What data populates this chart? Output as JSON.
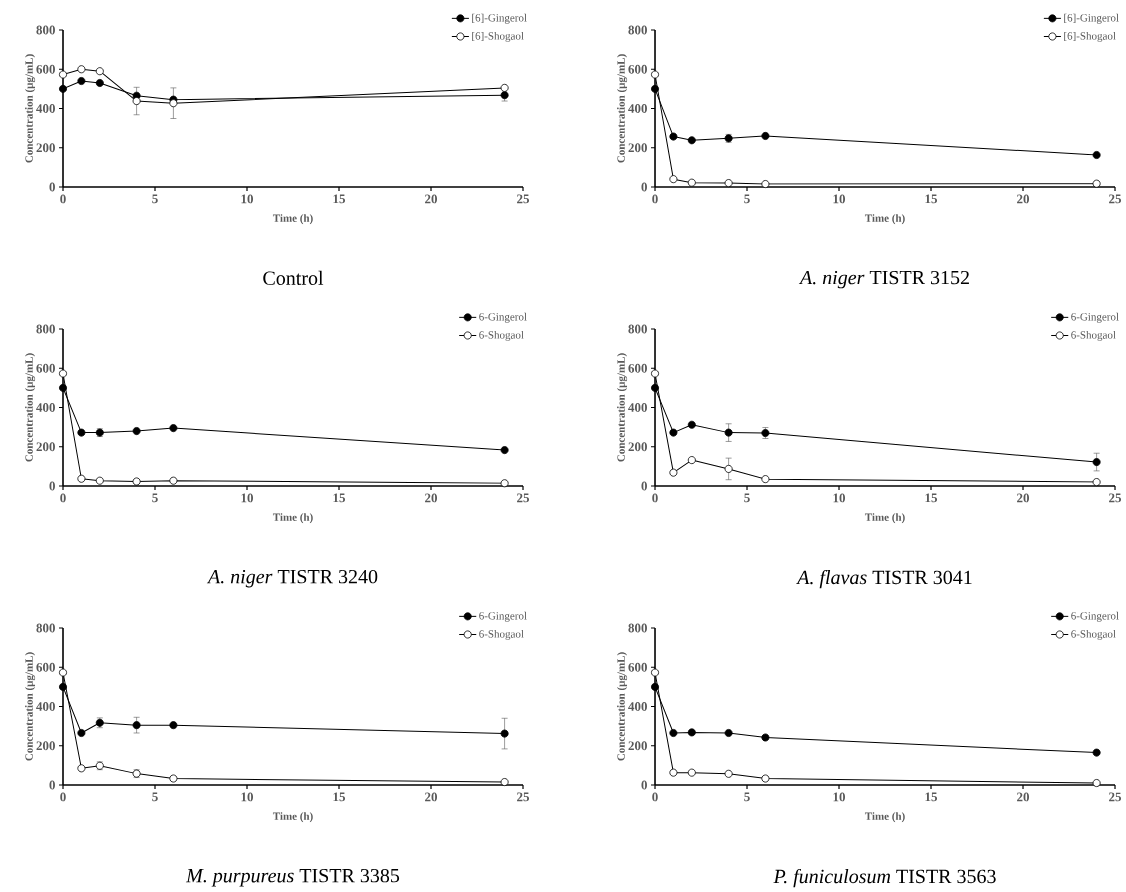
{
  "chart_data": [
    {
      "type": "line",
      "title": "Control",
      "xlabel": "Time (h)",
      "ylabel": "Concentration (µg/mL)",
      "x": [
        0,
        1,
        2,
        4,
        6,
        24
      ],
      "xlim": [
        0,
        25
      ],
      "xticks": [
        0,
        5,
        10,
        15,
        20,
        25
      ],
      "ylim": [
        0,
        800
      ],
      "yticks": [
        0,
        200,
        400,
        600,
        800
      ],
      "legend": "top right",
      "marker": "circle",
      "line_style": "solid",
      "series": [
        {
          "name": "[6]-Gingerol",
          "color": "#000000",
          "values": [
            500,
            540,
            530,
            465,
            445,
            468
          ],
          "errors": [
            null,
            null,
            null,
            null,
            null,
            30
          ]
        },
        {
          "name": "[6]-Shogaol",
          "color": "#000000",
          "values": [
            573,
            600,
            590,
            438,
            427,
            505
          ],
          "errors": [
            null,
            null,
            null,
            70,
            78,
            null
          ]
        }
      ]
    },
    {
      "type": "line",
      "title": "*A. niger* TISTR 3152",
      "xlabel": "Time (h)",
      "ylabel": "Concentration (µg/mL)",
      "x": [
        0,
        1,
        2,
        4,
        6,
        24
      ],
      "xlim": [
        0,
        25
      ],
      "xticks": [
        0,
        5,
        10,
        15,
        20,
        25
      ],
      "ylim": [
        0,
        800
      ],
      "yticks": [
        0,
        200,
        400,
        600,
        800
      ],
      "legend": "top right",
      "marker": "circle",
      "line_style": "solid",
      "series": [
        {
          "name": "[6]-Gingerol",
          "color": "#000000",
          "values": [
            500,
            257,
            238,
            248,
            260,
            163
          ],
          "errors": [
            null,
            null,
            null,
            20,
            null,
            null
          ]
        },
        {
          "name": "[6]-Shogaol",
          "color": "#000000",
          "values": [
            573,
            40,
            22,
            20,
            15,
            17
          ]
        }
      ]
    },
    {
      "type": "line",
      "title": "*A. niger* TISTR 3240",
      "xlabel": "Time (h)",
      "ylabel": "Concentration (µg/mL)",
      "x": [
        0,
        1,
        2,
        4,
        6,
        24
      ],
      "xlim": [
        0,
        25
      ],
      "xticks": [
        0,
        5,
        10,
        15,
        20,
        25
      ],
      "ylim": [
        0,
        800
      ],
      "yticks": [
        0,
        200,
        400,
        600,
        800
      ],
      "legend": "top right",
      "marker": "circle",
      "line_style": "solid",
      "series": [
        {
          "name": "6-Gingerol",
          "color": "#000000",
          "values": [
            500,
            272,
            272,
            280,
            295,
            183
          ],
          "errors": [
            null,
            null,
            20,
            null,
            null,
            null
          ]
        },
        {
          "name": "6-Shogaol",
          "color": "#000000",
          "values": [
            573,
            37,
            27,
            23,
            27,
            14
          ]
        }
      ]
    },
    {
      "type": "line",
      "title": "*A. flavas* TISTR 3041",
      "xlabel": "Time (h)",
      "ylabel": "Concentration (µg/mL)",
      "x": [
        0,
        1,
        2,
        4,
        6,
        24
      ],
      "xlim": [
        0,
        25
      ],
      "xticks": [
        0,
        5,
        10,
        15,
        20,
        25
      ],
      "ylim": [
        0,
        800
      ],
      "yticks": [
        0,
        200,
        400,
        600,
        800
      ],
      "legend": "top right",
      "marker": "circle",
      "line_style": "solid",
      "series": [
        {
          "name": "6-Gingerol",
          "color": "#000000",
          "values": [
            500,
            272,
            312,
            272,
            270,
            122
          ],
          "errors": [
            null,
            null,
            null,
            45,
            28,
            45
          ]
        },
        {
          "name": "6-Shogaol",
          "color": "#000000",
          "values": [
            573,
            68,
            132,
            87,
            35,
            20
          ],
          "errors": [
            null,
            null,
            null,
            55,
            null,
            null
          ]
        }
      ]
    },
    {
      "type": "line",
      "title": "*M. purpureus* TISTR 3385",
      "xlabel": "Time (h)",
      "ylabel": "Concentration (µg/mL)",
      "x": [
        0,
        1,
        2,
        4,
        6,
        24
      ],
      "xlim": [
        0,
        25
      ],
      "xticks": [
        0,
        5,
        10,
        15,
        20,
        25
      ],
      "ylim": [
        0,
        800
      ],
      "yticks": [
        0,
        200,
        400,
        600,
        800
      ],
      "legend": "top right",
      "marker": "circle",
      "line_style": "solid",
      "series": [
        {
          "name": "6-Gingerol",
          "color": "#000000",
          "values": [
            500,
            265,
            317,
            305,
            305,
            262
          ],
          "errors": [
            null,
            null,
            25,
            40,
            null,
            78
          ]
        },
        {
          "name": "6-Shogaol",
          "color": "#000000",
          "values": [
            573,
            85,
            98,
            58,
            33,
            15
          ],
          "errors": [
            null,
            null,
            20,
            20,
            null,
            null
          ]
        }
      ]
    },
    {
      "type": "line",
      "title": "*P. funiculosum* TISTR 3563",
      "xlabel": "Time (h)",
      "ylabel": "Concentration (µg/mL)",
      "x": [
        0,
        1,
        2,
        4,
        6,
        24
      ],
      "xlim": [
        0,
        25
      ],
      "xticks": [
        0,
        5,
        10,
        15,
        20,
        25
      ],
      "ylim": [
        0,
        800
      ],
      "yticks": [
        0,
        200,
        400,
        600,
        800
      ],
      "legend": "top right",
      "marker": "circle",
      "line_style": "solid",
      "series": [
        {
          "name": "6-Gingerol",
          "color": "#000000",
          "values": [
            500,
            265,
            268,
            265,
            242,
            165
          ]
        },
        {
          "name": "6-Shogaol",
          "color": "#000000",
          "values": [
            573,
            63,
            63,
            57,
            33,
            10
          ]
        }
      ]
    }
  ]
}
